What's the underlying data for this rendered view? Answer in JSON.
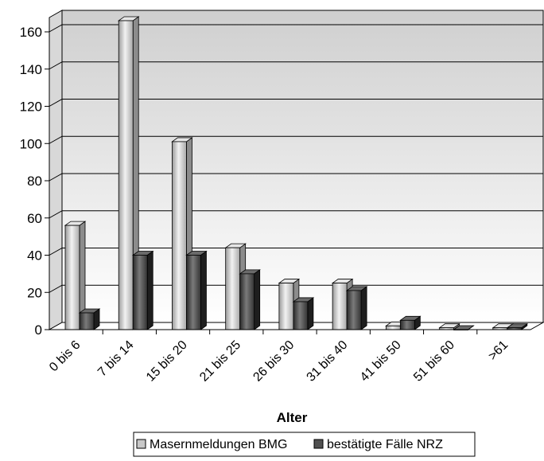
{
  "chart_data": {
    "type": "bar",
    "title": "",
    "xlabel": "Alter",
    "ylabel": "",
    "ylim": [
      0,
      160
    ],
    "yticks": [
      0,
      20,
      40,
      60,
      80,
      100,
      120,
      140,
      160
    ],
    "grid": true,
    "legend_position": "bottom",
    "categories": [
      "0 bis 6",
      "7 bis 14",
      "15 bis 20",
      "21 bis 25",
      "26 bis 30",
      "31 bis 40",
      "41 bis 50",
      "51 bis 60",
      ">61"
    ],
    "series": [
      {
        "name": "Masernmeldungen BMG",
        "color": "#c8c8c8",
        "values": [
          56,
          166,
          101,
          44,
          25,
          25,
          2,
          1,
          1
        ]
      },
      {
        "name": "bestätigte Fälle NRZ",
        "color": "#505050",
        "values": [
          9,
          40,
          40,
          30,
          15,
          21,
          5,
          0,
          1
        ]
      }
    ]
  }
}
